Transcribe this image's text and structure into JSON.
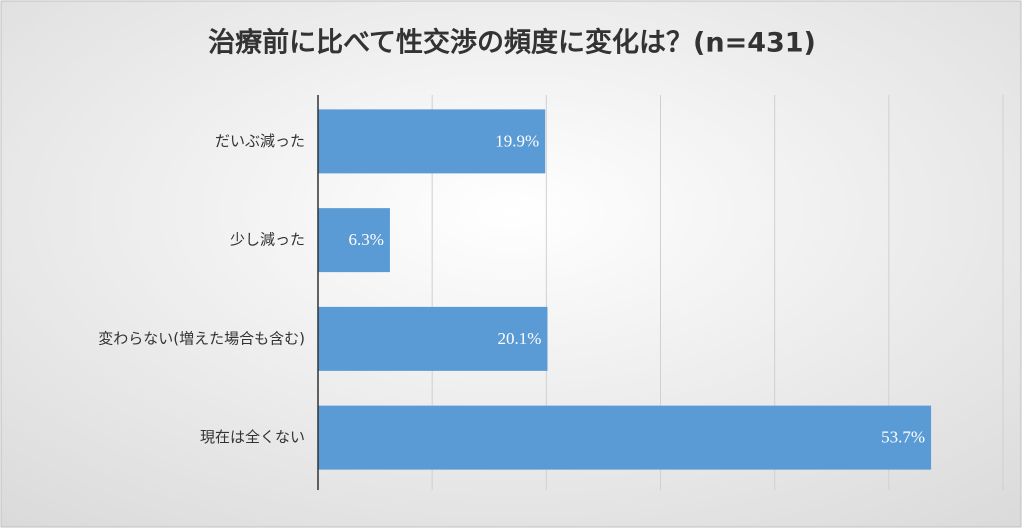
{
  "chart_data": {
    "type": "bar",
    "orientation": "horizontal",
    "title": "治療前に比べて性交渉の頻度に変化は？(n=431)",
    "categories": [
      "だいぶ減った",
      "少し減った",
      "変わらない(増えた場合も含む)",
      "現在は全くない"
    ],
    "values": [
      19.9,
      6.3,
      20.1,
      53.7
    ],
    "value_labels": [
      "19.9%",
      "6.3%",
      "20.1%",
      "53.7%"
    ],
    "color": "#5b9bd5",
    "xlim": [
      0,
      60
    ],
    "xticks": [
      0,
      10,
      20,
      30,
      40,
      50,
      60
    ],
    "grid": true
  }
}
